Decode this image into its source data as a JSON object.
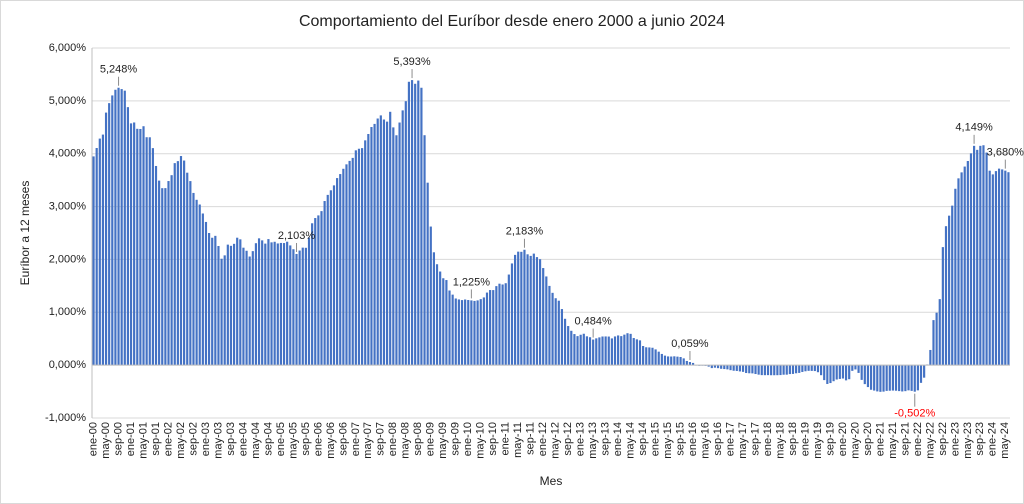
{
  "chart_data": {
    "type": "bar",
    "title": "Comportamiento del Euríbor desde enero 2000 a junio 2024",
    "y_label": "Euríbor a 12 meses",
    "x_label": "Mes",
    "color": "#4472c4",
    "grid": true,
    "ylim": [
      -1,
      6
    ],
    "yticks": [
      {
        "value": -1,
        "label": "-1,000%"
      },
      {
        "value": 0,
        "label": "0,000%"
      },
      {
        "value": 1,
        "label": "1,000%"
      },
      {
        "value": 2,
        "label": "2,000%"
      },
      {
        "value": 3,
        "label": "3,000%"
      },
      {
        "value": 4,
        "label": "4,000%"
      },
      {
        "value": 5,
        "label": "5,000%"
      },
      {
        "value": 6,
        "label": "6,000%"
      }
    ],
    "categories": [
      "ene-00",
      null,
      null,
      null,
      "may-00",
      null,
      null,
      null,
      "sep-00",
      null,
      null,
      null,
      "ene-01",
      null,
      null,
      null,
      "may-01",
      null,
      null,
      null,
      "sep-01",
      null,
      null,
      null,
      "ene-02",
      null,
      null,
      null,
      "may-02",
      null,
      null,
      null,
      "sep-02",
      null,
      null,
      null,
      "ene-03",
      null,
      null,
      null,
      "may-03",
      null,
      null,
      null,
      "sep-03",
      null,
      null,
      null,
      "ene-04",
      null,
      null,
      null,
      "may-04",
      null,
      null,
      null,
      "sep-04",
      null,
      null,
      null,
      "ene-05",
      null,
      null,
      null,
      "may-05",
      null,
      null,
      null,
      "sep-05",
      null,
      null,
      null,
      "ene-06",
      null,
      null,
      null,
      "may-06",
      null,
      null,
      null,
      "sep-06",
      null,
      null,
      null,
      "ene-07",
      null,
      null,
      null,
      "may-07",
      null,
      null,
      null,
      "sep-07",
      null,
      null,
      null,
      "ene-08",
      null,
      null,
      null,
      "may-08",
      null,
      null,
      null,
      "sep-08",
      null,
      null,
      null,
      "ene-09",
      null,
      null,
      null,
      "may-09",
      null,
      null,
      null,
      "sep-09",
      null,
      null,
      null,
      "ene-10",
      null,
      null,
      null,
      "may-10",
      null,
      null,
      null,
      "sep-10",
      null,
      null,
      null,
      "ene-11",
      null,
      null,
      null,
      "may-11",
      null,
      null,
      null,
      "sep-11",
      null,
      null,
      null,
      "ene-12",
      null,
      null,
      null,
      "may-12",
      null,
      null,
      null,
      "sep-12",
      null,
      null,
      null,
      "ene-13",
      null,
      null,
      null,
      "may-13",
      null,
      null,
      null,
      "sep-13",
      null,
      null,
      null,
      "ene-14",
      null,
      null,
      null,
      "may-14",
      null,
      null,
      null,
      "sep-14",
      null,
      null,
      null,
      "ene-15",
      null,
      null,
      null,
      "may-15",
      null,
      null,
      null,
      "sep-15",
      null,
      null,
      null,
      "ene-16",
      null,
      null,
      null,
      "may-16",
      null,
      null,
      null,
      "sep-16",
      null,
      null,
      null,
      "ene-17",
      null,
      null,
      null,
      "may-17",
      null,
      null,
      null,
      "sep-17",
      null,
      null,
      null,
      "ene-18",
      null,
      null,
      null,
      "may-18",
      null,
      null,
      null,
      "sep-18",
      null,
      null,
      null,
      "ene-19",
      null,
      null,
      null,
      "may-19",
      null,
      null,
      null,
      "sep-19",
      null,
      null,
      null,
      "ene-20",
      null,
      null,
      null,
      "may-20",
      null,
      null,
      null,
      "sep-20",
      null,
      null,
      null,
      "ene-21",
      null,
      null,
      null,
      "may-21",
      null,
      null,
      null,
      "sep-21",
      null,
      null,
      null,
      "ene-22",
      null,
      null,
      null,
      "may-22",
      null,
      null,
      null,
      "sep-22",
      null,
      null,
      null,
      "ene-23",
      null,
      null,
      null,
      "may-23",
      null,
      null,
      null,
      "sep-23",
      null,
      null,
      null,
      "ene-24",
      null,
      null,
      null,
      "may-24",
      null
    ],
    "values": [
      3.949,
      4.108,
      4.286,
      4.362,
      4.778,
      4.957,
      5.103,
      5.21,
      5.248,
      5.223,
      5.193,
      4.881,
      4.574,
      4.591,
      4.471,
      4.468,
      4.52,
      4.312,
      4.311,
      4.106,
      3.768,
      3.491,
      3.348,
      3.349,
      3.483,
      3.594,
      3.822,
      3.86,
      3.956,
      3.871,
      3.641,
      3.482,
      3.258,
      3.128,
      3.039,
      2.869,
      2.709,
      2.5,
      2.41,
      2.446,
      2.254,
      2.013,
      2.077,
      2.28,
      2.257,
      2.295,
      2.411,
      2.38,
      2.222,
      2.164,
      2.055,
      2.157,
      2.307,
      2.399,
      2.361,
      2.299,
      2.385,
      2.323,
      2.334,
      2.302,
      2.312,
      2.31,
      2.335,
      2.265,
      2.193,
      2.103,
      2.168,
      2.223,
      2.22,
      2.414,
      2.684,
      2.783,
      2.833,
      2.914,
      3.105,
      3.221,
      3.308,
      3.401,
      3.539,
      3.615,
      3.715,
      3.799,
      3.864,
      3.921,
      4.064,
      4.094,
      4.106,
      4.253,
      4.373,
      4.505,
      4.564,
      4.666,
      4.725,
      4.647,
      4.607,
      4.793,
      4.498,
      4.349,
      4.59,
      4.82,
      4.994,
      5.361,
      5.393,
      5.323,
      5.384,
      5.248,
      4.35,
      3.452,
      2.622,
      2.135,
      1.909,
      1.771,
      1.644,
      1.61,
      1.412,
      1.334,
      1.261,
      1.243,
      1.231,
      1.242,
      1.232,
      1.225,
      1.215,
      1.225,
      1.249,
      1.281,
      1.373,
      1.421,
      1.42,
      1.495,
      1.541,
      1.526,
      1.55,
      1.714,
      1.924,
      2.086,
      2.147,
      2.144,
      2.183,
      2.097,
      2.067,
      2.11,
      2.044,
      2.004,
      1.837,
      1.678,
      1.499,
      1.368,
      1.266,
      1.219,
      1.061,
      0.877,
      0.74,
      0.65,
      0.588,
      0.549,
      0.575,
      0.594,
      0.545,
      0.528,
      0.484,
      0.507,
      0.525,
      0.542,
      0.543,
      0.541,
      0.506,
      0.543,
      0.562,
      0.549,
      0.577,
      0.604,
      0.592,
      0.513,
      0.488,
      0.469,
      0.362,
      0.338,
      0.335,
      0.329,
      0.298,
      0.255,
      0.212,
      0.18,
      0.165,
      0.163,
      0.167,
      0.161,
      0.154,
      0.128,
      0.079,
      0.059,
      0.042,
      -0.008,
      -0.012,
      -0.01,
      -0.013,
      -0.028,
      -0.056,
      -0.048,
      -0.057,
      -0.069,
      -0.074,
      -0.08,
      -0.095,
      -0.106,
      -0.11,
      -0.119,
      -0.127,
      -0.149,
      -0.154,
      -0.156,
      -0.168,
      -0.18,
      -0.189,
      -0.19,
      -0.189,
      -0.191,
      -0.191,
      -0.19,
      -0.188,
      -0.181,
      -0.18,
      -0.169,
      -0.166,
      -0.154,
      -0.147,
      -0.129,
      -0.116,
      -0.108,
      -0.109,
      -0.112,
      -0.134,
      -0.19,
      -0.283,
      -0.356,
      -0.339,
      -0.304,
      -0.272,
      -0.261,
      -0.253,
      -0.288,
      -0.266,
      -0.108,
      -0.081,
      -0.147,
      -0.279,
      -0.359,
      -0.415,
      -0.466,
      -0.481,
      -0.497,
      -0.505,
      -0.501,
      -0.487,
      -0.484,
      -0.481,
      -0.484,
      -0.491,
      -0.498,
      -0.492,
      -0.477,
      -0.487,
      -0.502,
      -0.477,
      -0.335,
      -0.237,
      0.013,
      0.287,
      0.852,
      0.992,
      1.249,
      2.233,
      2.629,
      2.828,
      3.018,
      3.337,
      3.534,
      3.647,
      3.757,
      3.862,
      4.007,
      4.149,
      4.073,
      4.149,
      4.16,
      4.022,
      3.679,
      3.609,
      3.671,
      3.718,
      3.703,
      3.68,
      3.65
    ],
    "value_labels": [
      null,
      null,
      null,
      null,
      null,
      null,
      null,
      null,
      "5,248%",
      null,
      null,
      null,
      null,
      null,
      null,
      null,
      null,
      null,
      null,
      null,
      null,
      null,
      null,
      null,
      null,
      null,
      null,
      null,
      null,
      null,
      null,
      null,
      null,
      null,
      null,
      null,
      null,
      null,
      null,
      null,
      null,
      null,
      null,
      null,
      null,
      null,
      null,
      null,
      null,
      null,
      null,
      null,
      null,
      null,
      null,
      null,
      null,
      null,
      null,
      null,
      null,
      null,
      null,
      null,
      null,
      "2,103%",
      null,
      null,
      null,
      null,
      null,
      null,
      null,
      null,
      null,
      null,
      null,
      null,
      null,
      null,
      null,
      null,
      null,
      null,
      null,
      null,
      null,
      null,
      null,
      null,
      null,
      null,
      null,
      null,
      null,
      null,
      null,
      null,
      null,
      null,
      null,
      null,
      "5,393%",
      null,
      null,
      null,
      null,
      null,
      null,
      null,
      null,
      null,
      null,
      null,
      null,
      null,
      null,
      null,
      null,
      null,
      null,
      "1,225%",
      null,
      null,
      null,
      null,
      null,
      null,
      null,
      null,
      null,
      null,
      null,
      null,
      null,
      null,
      null,
      null,
      "2,183%",
      null,
      null,
      null,
      null,
      null,
      null,
      null,
      null,
      null,
      null,
      null,
      null,
      null,
      null,
      null,
      null,
      null,
      null,
      null,
      null,
      null,
      "0,484%",
      null,
      null,
      null,
      null,
      null,
      null,
      null,
      null,
      null,
      null,
      null,
      null,
      null,
      null,
      null,
      null,
      null,
      null,
      null,
      null,
      null,
      null,
      null,
      null,
      null,
      null,
      null,
      null,
      null,
      null,
      "0,059%",
      null,
      null,
      null,
      null,
      null,
      null,
      null,
      null,
      null,
      null,
      null,
      null,
      null,
      null,
      null,
      null,
      null,
      null,
      null,
      null,
      null,
      null,
      null,
      null,
      null,
      null,
      null,
      null,
      null,
      null,
      null,
      null,
      null,
      null,
      null,
      null,
      null,
      null,
      null,
      null,
      null,
      null,
      null,
      null,
      null,
      null,
      null,
      null,
      null,
      null,
      null,
      null,
      null,
      null,
      null,
      null,
      null,
      null,
      null,
      null,
      null,
      null,
      null,
      null,
      null,
      null,
      null,
      null,
      null,
      null,
      null,
      "-0,502%",
      null,
      null,
      null,
      null,
      null,
      null,
      null,
      null,
      null,
      null,
      null,
      null,
      null,
      null,
      null,
      null,
      null,
      null,
      "4,149%",
      null,
      null,
      null,
      null,
      null,
      null,
      null,
      null,
      null,
      "3,680%",
      null
    ]
  }
}
